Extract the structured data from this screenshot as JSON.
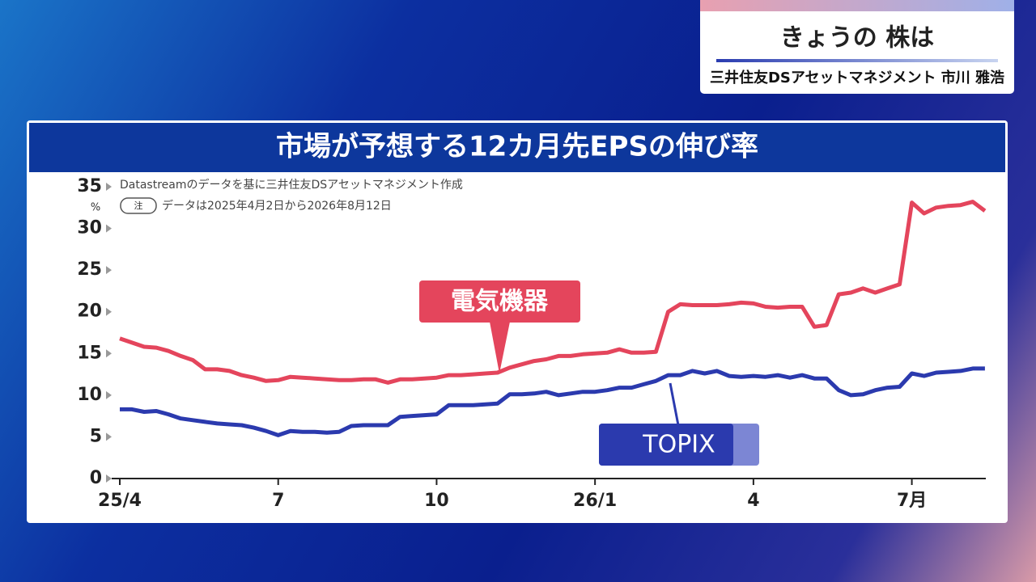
{
  "header": {
    "title": "きょうの 株は",
    "subtitle": "三井住友DSアセットマネジメント 市川 雅浩"
  },
  "chart_data": {
    "type": "line",
    "title": "市場が予想する12カ月先EPSの伸び率",
    "source": "Datastreamのデータを基に三井住友DSアセットマネジメント作成",
    "note_badge": "注",
    "note": "データは2025年4月2日から2026年8月12日",
    "y_unit": "%",
    "categories": [
      "25/4",
      null,
      null,
      null,
      null,
      null,
      null,
      null,
      null,
      null,
      null,
      null,
      null,
      "7",
      null,
      null,
      null,
      null,
      null,
      null,
      null,
      null,
      null,
      null,
      null,
      null,
      "10",
      null,
      null,
      null,
      null,
      null,
      null,
      null,
      null,
      null,
      null,
      null,
      null,
      "26/1",
      null,
      null,
      null,
      null,
      null,
      null,
      null,
      null,
      null,
      null,
      null,
      null,
      "4",
      null,
      null,
      null,
      null,
      null,
      null,
      null,
      null,
      null,
      null,
      null,
      null,
      "7月",
      null,
      null,
      null,
      null,
      null,
      null
    ],
    "series": [
      {
        "name": "電気機器",
        "color": "#e4455c",
        "values": [
          16.8,
          16.3,
          15.8,
          15.7,
          15.3,
          14.7,
          14.2,
          13.1,
          13.1,
          12.9,
          12.4,
          12.1,
          11.7,
          11.8,
          12.2,
          12.1,
          12.0,
          11.9,
          11.8,
          11.8,
          11.9,
          11.9,
          11.5,
          11.9,
          11.9,
          12.0,
          12.1,
          12.4,
          12.4,
          12.5,
          12.6,
          12.7,
          13.3,
          13.7,
          14.1,
          14.3,
          14.7,
          14.7,
          14.9,
          15.0,
          15.1,
          15.5,
          15.1,
          15.1,
          15.2,
          20.0,
          20.9,
          20.8,
          20.8,
          20.8,
          20.9,
          21.1,
          21.0,
          20.6,
          20.5,
          20.6,
          20.6,
          18.2,
          18.4,
          22.1,
          22.3,
          22.8,
          22.3,
          22.8,
          23.3,
          33.1,
          31.8,
          32.5,
          32.7,
          32.8,
          33.2,
          32.1
        ]
      },
      {
        "name": "TOPIX",
        "color": "#2b3aae",
        "values": [
          8.3,
          8.3,
          8.0,
          8.1,
          7.7,
          7.2,
          7.0,
          6.8,
          6.6,
          6.5,
          6.4,
          6.1,
          5.7,
          5.2,
          5.7,
          5.6,
          5.6,
          5.5,
          5.6,
          6.3,
          6.4,
          6.4,
          6.4,
          7.4,
          7.5,
          7.6,
          7.7,
          8.8,
          8.8,
          8.8,
          8.9,
          9.0,
          10.1,
          10.1,
          10.2,
          10.4,
          10.0,
          10.2,
          10.4,
          10.4,
          10.6,
          10.9,
          10.9,
          11.3,
          11.7,
          12.4,
          12.4,
          12.9,
          12.6,
          12.9,
          12.3,
          12.2,
          12.3,
          12.2,
          12.4,
          12.1,
          12.4,
          12.0,
          12.0,
          10.6,
          10.0,
          10.1,
          10.6,
          10.9,
          11.0,
          12.6,
          12.3,
          12.7,
          12.8,
          12.9,
          13.2,
          13.2
        ]
      }
    ],
    "ylim": [
      0,
      35
    ],
    "yticks": [
      0,
      5,
      10,
      15,
      20,
      25,
      30,
      35
    ]
  }
}
